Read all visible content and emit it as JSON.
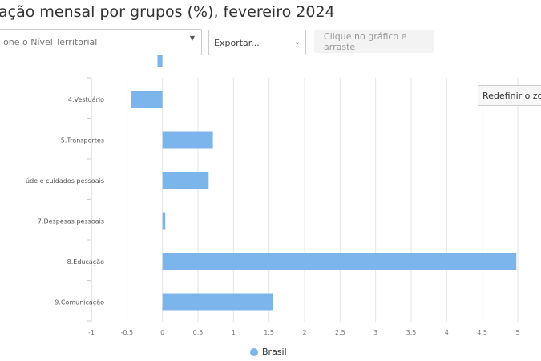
{
  "header": {
    "title": "ação mensal por grupos (%), fevereiro 2024"
  },
  "controls": {
    "territorial_placeholder": "ione o Nível Territorial",
    "export_label": "Exportar...",
    "hint": "Clique no gráfico e arraste",
    "reset_zoom": "Redefinir o zoom"
  },
  "chart_data": {
    "type": "bar",
    "orientation": "horizontal",
    "categories": [
      "",
      "4.Vestuário",
      "5.Transportes",
      "úde e cuidados pessoais",
      "7.Despesas pessoais",
      "8.Educação",
      "9.Comunicação"
    ],
    "series": [
      {
        "name": "Brasil",
        "color": "#7cb5ec",
        "values": [
          -0.07,
          -0.44,
          0.71,
          0.65,
          0.04,
          4.98,
          1.56
        ]
      }
    ],
    "xlim": [
      -1,
      5
    ],
    "xticks": [
      "-1",
      "-0.5",
      "0",
      "0.5",
      "1",
      "1.5",
      "2",
      "2.5",
      "3",
      "3.5",
      "4",
      "4.5",
      "5"
    ],
    "grid": true,
    "legend": "bottom"
  }
}
